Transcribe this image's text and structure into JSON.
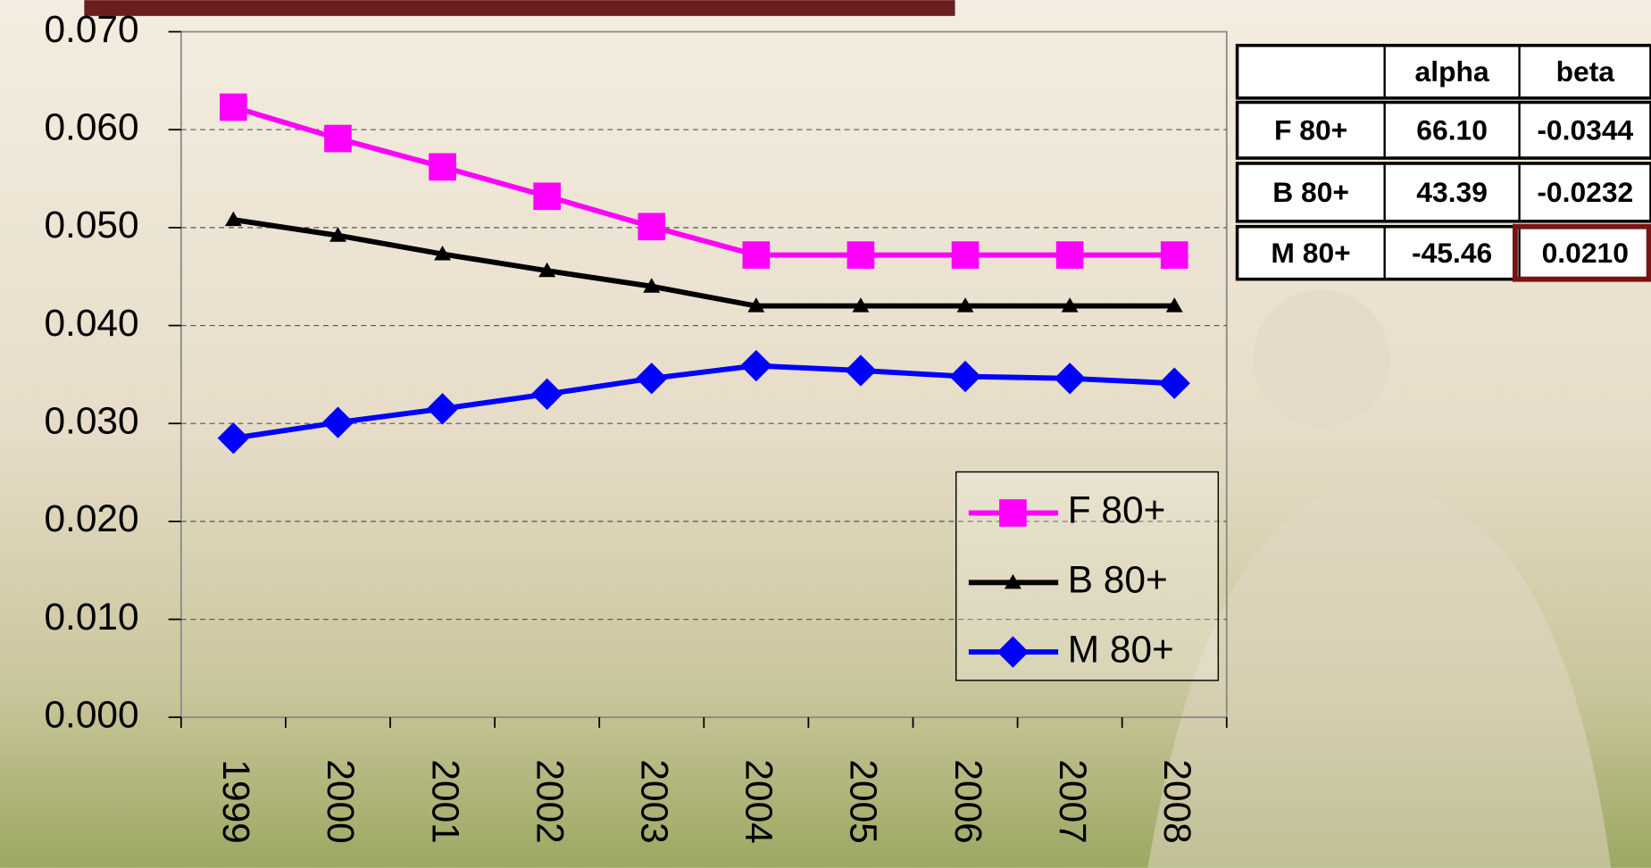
{
  "chart_data": {
    "type": "line",
    "categories": [
      "1999",
      "2000",
      "2001",
      "2002",
      "2003",
      "2004",
      "2005",
      "2006",
      "2007",
      "2008"
    ],
    "series": [
      {
        "name": "F 80+",
        "color": "#ff00ff",
        "marker": "square",
        "values": [
          0.0623,
          0.0591,
          0.0562,
          0.0532,
          0.0501,
          0.0472,
          0.0472,
          0.0472,
          0.0472,
          0.0472
        ]
      },
      {
        "name": "B 80+",
        "color": "#000000",
        "marker": "triangle",
        "values": [
          0.0508,
          0.0492,
          0.0473,
          0.0456,
          0.044,
          0.042,
          0.042,
          0.042,
          0.042,
          0.042
        ]
      },
      {
        "name": "M 80+",
        "color": "#0000ff",
        "marker": "diamond",
        "values": [
          0.0285,
          0.0301,
          0.0315,
          0.033,
          0.0346,
          0.0359,
          0.0354,
          0.0348,
          0.0346,
          0.0341
        ]
      }
    ],
    "ylim": [
      0,
      0.07
    ],
    "yticks": [
      {
        "value": 0,
        "label": "0.000"
      },
      {
        "value": 0.01,
        "label": "0.010"
      },
      {
        "value": 0.02,
        "label": "0.020"
      },
      {
        "value": 0.03,
        "label": "0.030"
      },
      {
        "value": 0.04,
        "label": "0.040"
      },
      {
        "value": 0.05,
        "label": "0.050"
      },
      {
        "value": 0.06,
        "label": "0.060"
      },
      {
        "value": 0.07,
        "label": "0.070"
      }
    ],
    "grid": true,
    "legend": "lower right"
  },
  "table": {
    "header": [
      "",
      "alpha",
      "beta"
    ],
    "rows": [
      [
        "F 80+",
        "66.10",
        "-0.0344"
      ],
      [
        "B 80+",
        "43.39",
        "-0.0232"
      ],
      [
        "M 80+",
        "-45.46",
        "0.0210"
      ]
    ]
  }
}
